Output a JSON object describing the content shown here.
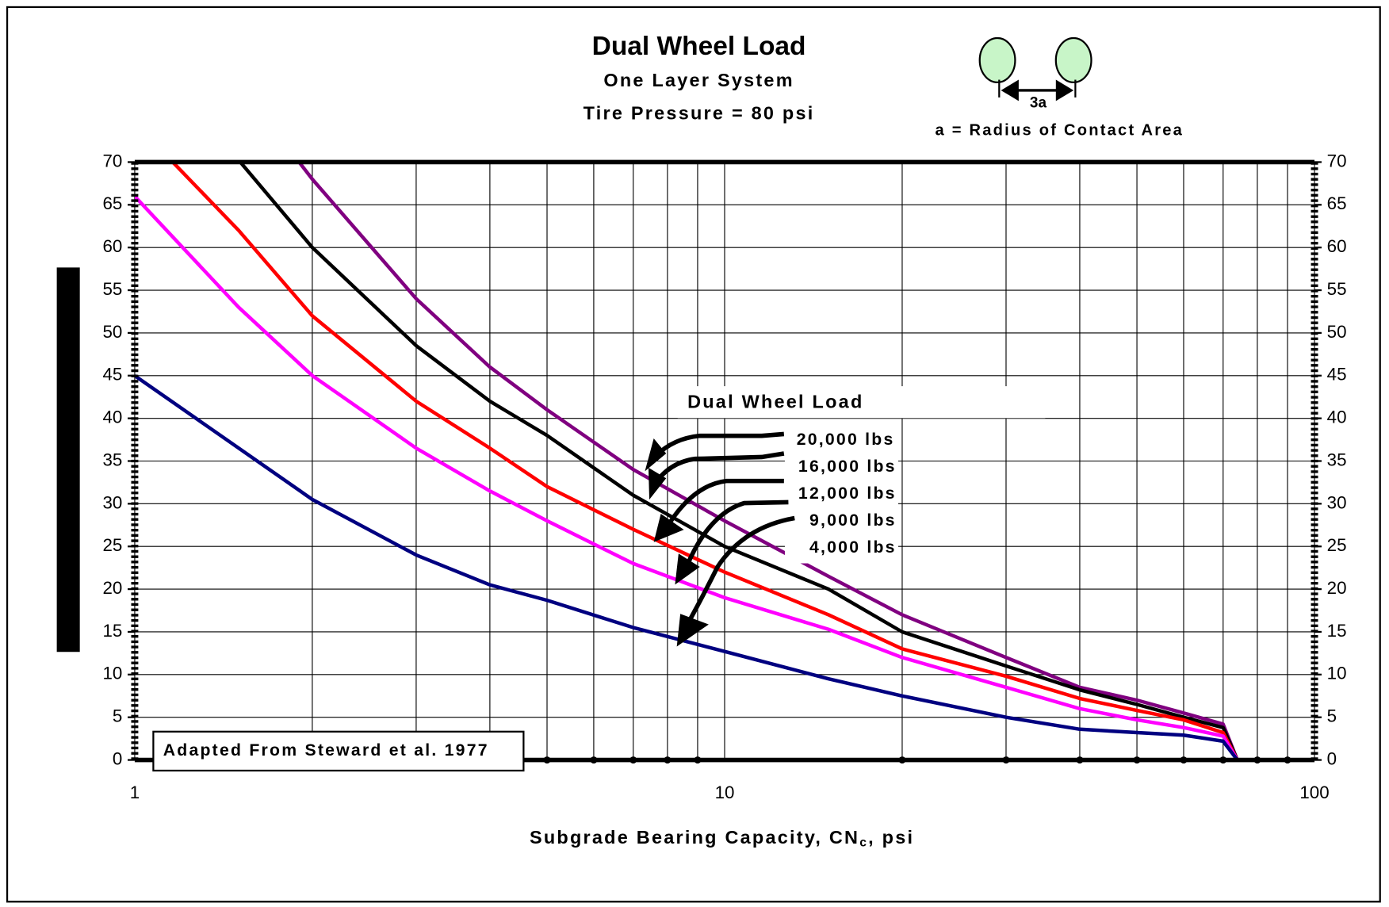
{
  "chart_data": {
    "type": "line",
    "title": "Dual Wheel Load",
    "subtitle": "One Layer System",
    "subtitle2": "Tire Pressure = 80 psi",
    "diagram_label": "3a",
    "diagram_caption": "a = Radius of Contact Area",
    "xlabel": "Subgrade Bearing Capacity, CN",
    "xlabel_subscript": "c",
    "xlabel_suffix": ", psi",
    "legend_title": "Dual Wheel Load",
    "annotation": "Adapted From Steward et al. 1977",
    "xscale": "log",
    "xlim": [
      1,
      100
    ],
    "xticks": [
      1,
      10,
      100
    ],
    "xminor": [
      2,
      3,
      4,
      5,
      6,
      7,
      8,
      9,
      20,
      30,
      40,
      50,
      60,
      70,
      80,
      90
    ],
    "ylim": [
      0,
      70
    ],
    "yticks": [
      0,
      5,
      10,
      15,
      20,
      25,
      30,
      35,
      40,
      45,
      50,
      55,
      60,
      65,
      70
    ],
    "grid": true,
    "series": [
      {
        "name": "20,000 lbs",
        "color": "#800080",
        "x": [
          1.9,
          2,
          3,
          4,
          5,
          7,
          10,
          15,
          20,
          30,
          40,
          50,
          60,
          70,
          74
        ],
        "values": [
          70,
          68,
          54,
          46,
          41,
          34,
          28,
          21.5,
          17,
          12,
          8.5,
          7,
          5.5,
          4.2,
          0
        ]
      },
      {
        "name": "16,000 lbs",
        "color": "#000000",
        "x": [
          1.51,
          2,
          3,
          4,
          5,
          7,
          10,
          15,
          20,
          30,
          40,
          50,
          60,
          70,
          74
        ],
        "values": [
          70,
          60,
          48.5,
          42,
          38,
          31,
          25,
          20,
          15,
          11,
          8.2,
          6.5,
          5,
          3.8,
          0
        ]
      },
      {
        "name": "12,000 lbs",
        "color": "#ff0000",
        "x": [
          1.16,
          1.5,
          2,
          3,
          4,
          5,
          7,
          10,
          15,
          20,
          30,
          40,
          50,
          60,
          70,
          74
        ],
        "values": [
          70,
          62,
          52,
          42,
          36.5,
          32,
          27,
          22,
          17,
          13,
          9.8,
          7.2,
          5.8,
          4.7,
          3.2,
          0
        ]
      },
      {
        "name": "9,000 lbs",
        "color": "#ff00ff",
        "x": [
          1,
          1.5,
          2,
          3,
          4,
          5,
          7,
          10,
          15,
          20,
          30,
          40,
          50,
          60,
          70,
          74
        ],
        "values": [
          66,
          53,
          45,
          36.5,
          31.5,
          28,
          23,
          19,
          15.3,
          12,
          8.5,
          6,
          4.7,
          3.8,
          2.8,
          0
        ]
      },
      {
        "name": "4,000 lbs",
        "color": "#000080",
        "x": [
          1,
          2,
          3,
          4,
          5,
          7,
          10,
          15,
          20,
          30,
          40,
          50,
          60,
          70,
          74
        ],
        "values": [
          45,
          30.5,
          24,
          20.5,
          18.7,
          15.5,
          12.7,
          9.5,
          7.5,
          5,
          3.6,
          3.2,
          2.9,
          2.2,
          0
        ]
      }
    ]
  }
}
